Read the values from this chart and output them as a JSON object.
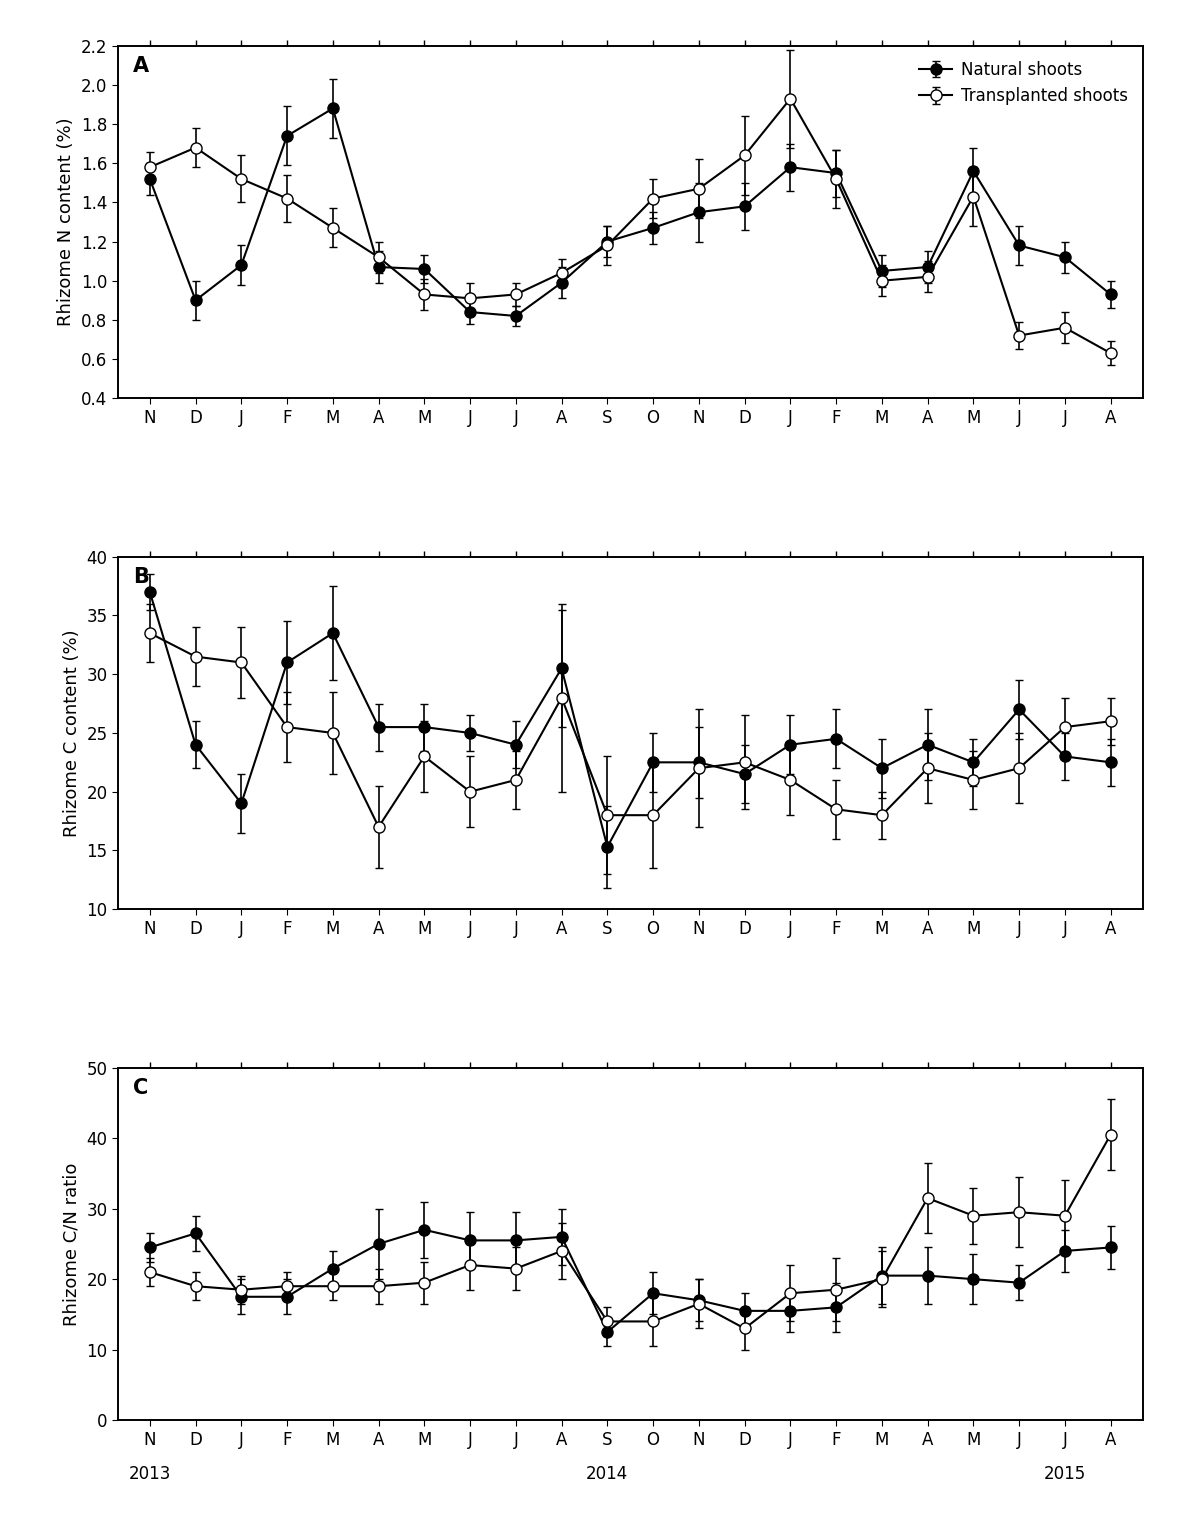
{
  "x_labels": [
    "N",
    "D",
    "J",
    "F",
    "M",
    "A",
    "M",
    "J",
    "J",
    "A",
    "S",
    "O",
    "N",
    "D",
    "J",
    "F",
    "M",
    "A",
    "M",
    "J",
    "J",
    "A"
  ],
  "panel_A": {
    "title": "A",
    "ylabel": "Rhizome N content (%)",
    "ylim": [
      0.4,
      2.2
    ],
    "yticks": [
      0.4,
      0.6,
      0.8,
      1.0,
      1.2,
      1.4,
      1.6,
      1.8,
      2.0,
      2.2
    ],
    "natural_y": [
      1.52,
      0.9,
      1.08,
      1.74,
      1.88,
      1.07,
      1.06,
      0.84,
      0.82,
      0.99,
      1.2,
      1.27,
      1.35,
      1.38,
      1.58,
      1.55,
      1.05,
      1.07,
      1.56,
      1.18,
      1.12,
      0.93
    ],
    "natural_err": [
      0.08,
      0.1,
      0.1,
      0.15,
      0.15,
      0.08,
      0.07,
      0.06,
      0.05,
      0.08,
      0.08,
      0.08,
      0.15,
      0.12,
      0.12,
      0.12,
      0.08,
      0.08,
      0.12,
      0.1,
      0.08,
      0.07
    ],
    "transplanted_y": [
      1.58,
      1.68,
      1.52,
      1.42,
      1.27,
      1.12,
      0.93,
      0.91,
      0.93,
      1.04,
      1.18,
      1.42,
      1.47,
      1.64,
      1.93,
      1.52,
      1.0,
      1.02,
      1.43,
      0.72,
      0.76,
      0.63
    ],
    "transplanted_err": [
      0.08,
      0.1,
      0.12,
      0.12,
      0.1,
      0.08,
      0.08,
      0.08,
      0.06,
      0.07,
      0.1,
      0.1,
      0.15,
      0.2,
      0.25,
      0.15,
      0.08,
      0.08,
      0.15,
      0.07,
      0.08,
      0.06
    ]
  },
  "panel_B": {
    "title": "B",
    "ylabel": "Rhizome C content (%)",
    "ylim": [
      10,
      40
    ],
    "yticks": [
      10,
      15,
      20,
      25,
      30,
      35,
      40
    ],
    "natural_y": [
      37.0,
      24.0,
      19.0,
      31.0,
      33.5,
      25.5,
      25.5,
      25.0,
      24.0,
      30.5,
      15.3,
      22.5,
      22.5,
      21.5,
      24.0,
      24.5,
      22.0,
      24.0,
      22.5,
      27.0,
      23.0,
      22.5
    ],
    "natural_err": [
      1.5,
      2.0,
      2.5,
      3.5,
      4.0,
      2.0,
      2.0,
      1.5,
      2.0,
      5.0,
      3.5,
      2.5,
      3.0,
      2.5,
      2.5,
      2.5,
      2.5,
      3.0,
      2.0,
      2.5,
      2.0,
      2.0
    ],
    "transplanted_y": [
      33.5,
      31.5,
      31.0,
      25.5,
      25.0,
      17.0,
      23.0,
      20.0,
      21.0,
      28.0,
      18.0,
      18.0,
      22.0,
      22.5,
      21.0,
      18.5,
      18.0,
      22.0,
      21.0,
      22.0,
      25.5,
      26.0
    ],
    "transplanted_err": [
      2.5,
      2.5,
      3.0,
      3.0,
      3.5,
      3.5,
      3.0,
      3.0,
      2.5,
      8.0,
      5.0,
      4.5,
      5.0,
      4.0,
      3.0,
      2.5,
      2.0,
      3.0,
      2.5,
      3.0,
      2.5,
      2.0
    ]
  },
  "panel_C": {
    "title": "C",
    "ylabel": "Rhizome C/N ratio",
    "ylim": [
      0,
      50
    ],
    "yticks": [
      0,
      10,
      20,
      30,
      40,
      50
    ],
    "natural_y": [
      24.5,
      26.5,
      17.5,
      17.5,
      21.5,
      25.0,
      27.0,
      25.5,
      25.5,
      26.0,
      12.5,
      18.0,
      17.0,
      15.5,
      15.5,
      16.0,
      20.5,
      20.5,
      20.0,
      19.5,
      24.0,
      24.5
    ],
    "natural_err": [
      2.0,
      2.5,
      2.5,
      2.5,
      2.5,
      5.0,
      4.0,
      4.0,
      4.0,
      4.0,
      2.0,
      3.0,
      3.0,
      2.5,
      3.0,
      3.5,
      4.0,
      4.0,
      3.5,
      2.5,
      3.0,
      3.0
    ],
    "transplanted_y": [
      21.0,
      19.0,
      18.5,
      19.0,
      19.0,
      19.0,
      19.5,
      22.0,
      21.5,
      24.0,
      14.0,
      14.0,
      16.5,
      13.0,
      18.0,
      18.5,
      20.0,
      31.5,
      29.0,
      29.5,
      29.0,
      40.5
    ],
    "transplanted_err": [
      2.0,
      2.0,
      2.0,
      2.0,
      2.0,
      2.5,
      3.0,
      3.5,
      3.0,
      4.0,
      2.0,
      3.5,
      3.5,
      3.0,
      4.0,
      4.5,
      4.0,
      5.0,
      4.0,
      5.0,
      5.0,
      5.0
    ]
  },
  "year_ticks": [
    0,
    11,
    21
  ],
  "year_labels": [
    "2013",
    "2014",
    "2015"
  ],
  "linewidth": 1.5,
  "markersize": 8,
  "capsize": 3,
  "elinewidth": 1.2
}
